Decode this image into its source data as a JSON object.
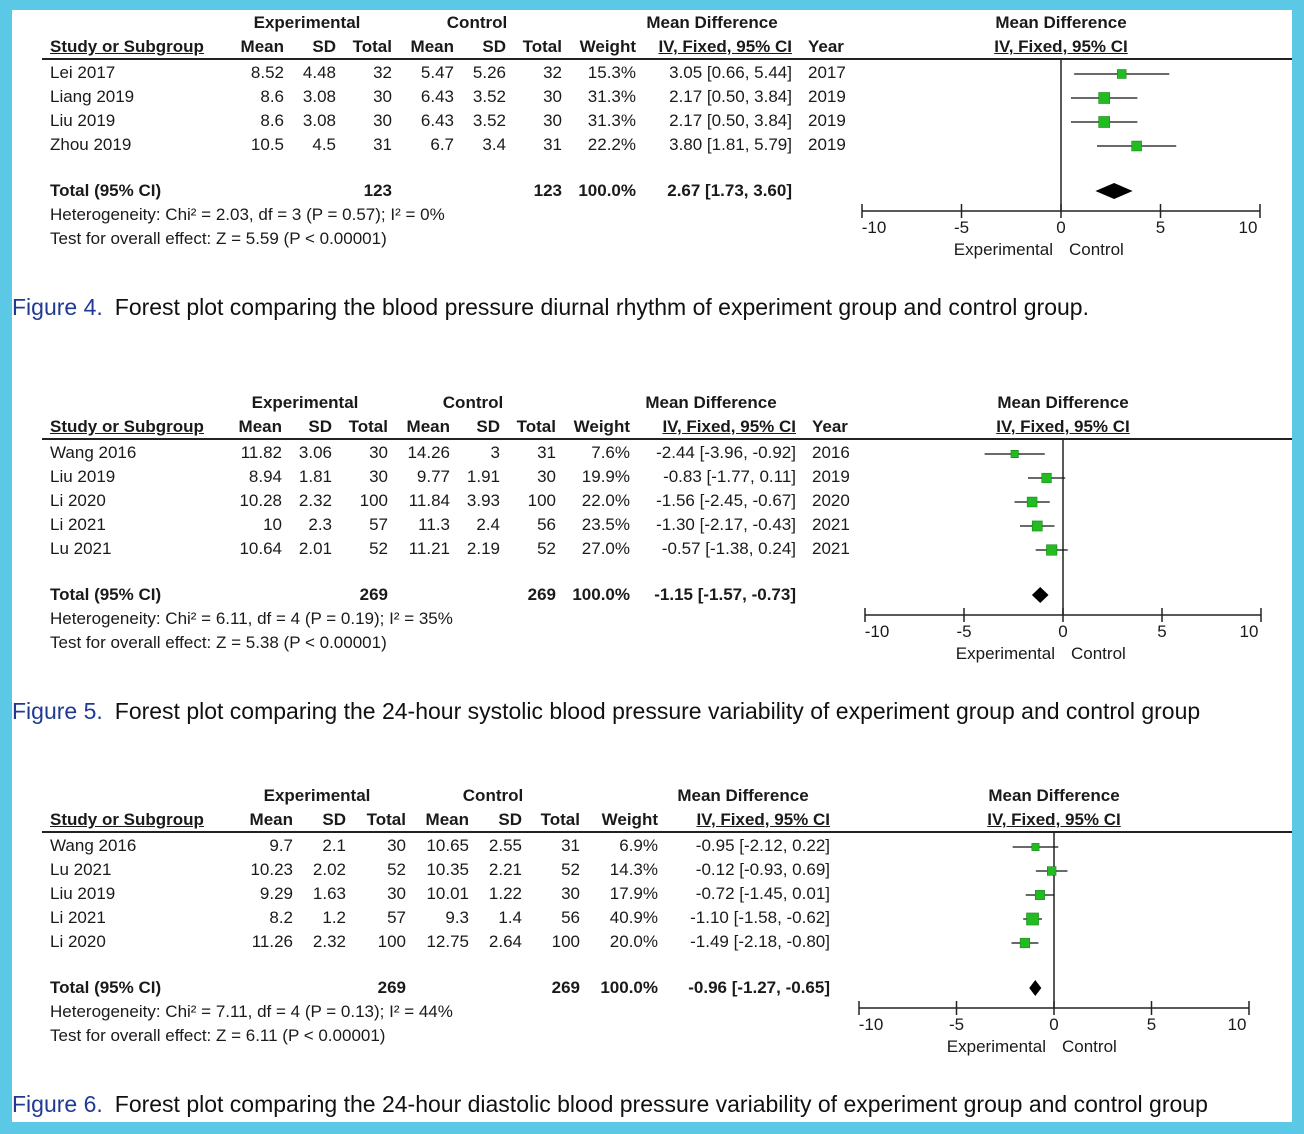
{
  "colors": {
    "frame": "#5bc8e6",
    "square": "#22bb22",
    "caption_label": "#1f3a93"
  },
  "headers": {
    "experimental": "Experimental",
    "control": "Control",
    "mean_difference": "Mean Difference",
    "study": "Study or Subgroup",
    "mean": "Mean",
    "sd": "SD",
    "total": "Total",
    "weight": "Weight",
    "ci_method": "IV, Fixed, 95% CI",
    "year": "Year",
    "favours_left": "Experimental",
    "favours_right": "Control"
  },
  "chart_data": [
    {
      "type": "forest",
      "figure_label": "Figure 4.",
      "caption": "Forest plot comparing the blood pressure diurnal rhythm of experiment group and control group.",
      "xlim": [
        -10,
        10
      ],
      "ticks": [
        "-10",
        "-5",
        "0",
        "5",
        "10"
      ],
      "has_year": true,
      "studies": [
        {
          "name": "Lei 2017",
          "e_mean": "8.52",
          "e_sd": "4.48",
          "e_total": "32",
          "c_mean": "5.47",
          "c_sd": "5.26",
          "c_total": "32",
          "weight": "15.3%",
          "ci": "3.05 [0.66, 5.44]",
          "year": "2017",
          "md": 3.05,
          "lo": 0.66,
          "hi": 5.44
        },
        {
          "name": "Liang 2019",
          "e_mean": "8.6",
          "e_sd": "3.08",
          "e_total": "30",
          "c_mean": "6.43",
          "c_sd": "3.52",
          "c_total": "30",
          "weight": "31.3%",
          "ci": "2.17 [0.50, 3.84]",
          "year": "2019",
          "md": 2.17,
          "lo": 0.5,
          "hi": 3.84
        },
        {
          "name": "Liu 2019",
          "e_mean": "8.6",
          "e_sd": "3.08",
          "e_total": "30",
          "c_mean": "6.43",
          "c_sd": "3.52",
          "c_total": "30",
          "weight": "31.3%",
          "ci": "2.17 [0.50, 3.84]",
          "year": "2019",
          "md": 2.17,
          "lo": 0.5,
          "hi": 3.84
        },
        {
          "name": "Zhou 2019",
          "e_mean": "10.5",
          "e_sd": "4.5",
          "e_total": "31",
          "c_mean": "6.7",
          "c_sd": "3.4",
          "c_total": "31",
          "weight": "22.2%",
          "ci": "3.80 [1.81, 5.79]",
          "year": "2019",
          "md": 3.8,
          "lo": 1.81,
          "hi": 5.79
        }
      ],
      "total": {
        "label": "Total (95% CI)",
        "e_total": "123",
        "c_total": "123",
        "weight": "100.0%",
        "ci": "2.67 [1.73, 3.60]",
        "md": 2.67,
        "lo": 1.73,
        "hi": 3.6
      },
      "heterogeneity": "Heterogeneity: Chi² = 2.03, df = 3 (P = 0.57); I² = 0%",
      "overall": "Test for overall effect: Z = 5.59 (P < 0.00001)"
    },
    {
      "type": "forest",
      "figure_label": "Figure 5.",
      "caption": "Forest plot comparing the 24-hour systolic blood pressure variability of experiment group and control group",
      "xlim": [
        -10,
        10
      ],
      "ticks": [
        "-10",
        "-5",
        "0",
        "5",
        "10"
      ],
      "has_year": true,
      "studies": [
        {
          "name": "Wang 2016",
          "e_mean": "11.82",
          "e_sd": "3.06",
          "e_total": "30",
          "c_mean": "14.26",
          "c_sd": "3",
          "c_total": "31",
          "weight": "7.6%",
          "ci": "-2.44 [-3.96, -0.92]",
          "year": "2016",
          "md": -2.44,
          "lo": -3.96,
          "hi": -0.92
        },
        {
          "name": "Liu 2019",
          "e_mean": "8.94",
          "e_sd": "1.81",
          "e_total": "30",
          "c_mean": "9.77",
          "c_sd": "1.91",
          "c_total": "30",
          "weight": "19.9%",
          "ci": "-0.83 [-1.77, 0.11]",
          "year": "2019",
          "md": -0.83,
          "lo": -1.77,
          "hi": 0.11
        },
        {
          "name": "Li 2020",
          "e_mean": "10.28",
          "e_sd": "2.32",
          "e_total": "100",
          "c_mean": "11.84",
          "c_sd": "3.93",
          "c_total": "100",
          "weight": "22.0%",
          "ci": "-1.56 [-2.45, -0.67]",
          "year": "2020",
          "md": -1.56,
          "lo": -2.45,
          "hi": -0.67
        },
        {
          "name": "Li 2021",
          "e_mean": "10",
          "e_sd": "2.3",
          "e_total": "57",
          "c_mean": "11.3",
          "c_sd": "2.4",
          "c_total": "56",
          "weight": "23.5%",
          "ci": "-1.30 [-2.17, -0.43]",
          "year": "2021",
          "md": -1.3,
          "lo": -2.17,
          "hi": -0.43
        },
        {
          "name": "Lu 2021",
          "e_mean": "10.64",
          "e_sd": "2.01",
          "e_total": "52",
          "c_mean": "11.21",
          "c_sd": "2.19",
          "c_total": "52",
          "weight": "27.0%",
          "ci": "-0.57 [-1.38, 0.24]",
          "year": "2021",
          "md": -0.57,
          "lo": -1.38,
          "hi": 0.24
        }
      ],
      "total": {
        "label": "Total (95% CI)",
        "e_total": "269",
        "c_total": "269",
        "weight": "100.0%",
        "ci": "-1.15 [-1.57, -0.73]",
        "md": -1.15,
        "lo": -1.57,
        "hi": -0.73
      },
      "heterogeneity": "Heterogeneity: Chi² = 6.11, df = 4 (P = 0.19); I² = 35%",
      "overall": "Test for overall effect: Z = 5.38 (P < 0.00001)"
    },
    {
      "type": "forest",
      "figure_label": "Figure 6.",
      "caption": "Forest plot comparing the 24-hour diastolic blood pressure variability of experiment group and control group",
      "xlim": [
        -10,
        10
      ],
      "ticks": [
        "-10",
        "-5",
        "0",
        "5",
        "10"
      ],
      "has_year": false,
      "studies": [
        {
          "name": "Wang 2016",
          "e_mean": "9.7",
          "e_sd": "2.1",
          "e_total": "30",
          "c_mean": "10.65",
          "c_sd": "2.55",
          "c_total": "31",
          "weight": "6.9%",
          "ci": "-0.95 [-2.12, 0.22]",
          "md": -0.95,
          "lo": -2.12,
          "hi": 0.22
        },
        {
          "name": "Lu 2021",
          "e_mean": "10.23",
          "e_sd": "2.02",
          "e_total": "52",
          "c_mean": "10.35",
          "c_sd": "2.21",
          "c_total": "52",
          "weight": "14.3%",
          "ci": "-0.12 [-0.93, 0.69]",
          "md": -0.12,
          "lo": -0.93,
          "hi": 0.69
        },
        {
          "name": "Liu 2019",
          "e_mean": "9.29",
          "e_sd": "1.63",
          "e_total": "30",
          "c_mean": "10.01",
          "c_sd": "1.22",
          "c_total": "30",
          "weight": "17.9%",
          "ci": "-0.72 [-1.45, 0.01]",
          "md": -0.72,
          "lo": -1.45,
          "hi": 0.01
        },
        {
          "name": "Li 2021",
          "e_mean": "8.2",
          "e_sd": "1.2",
          "e_total": "57",
          "c_mean": "9.3",
          "c_sd": "1.4",
          "c_total": "56",
          "weight": "40.9%",
          "ci": "-1.10 [-1.58, -0.62]",
          "md": -1.1,
          "lo": -1.58,
          "hi": -0.62
        },
        {
          "name": "Li 2020",
          "e_mean": "11.26",
          "e_sd": "2.32",
          "e_total": "100",
          "c_mean": "12.75",
          "c_sd": "2.64",
          "c_total": "100",
          "weight": "20.0%",
          "ci": "-1.49 [-2.18, -0.80]",
          "md": -1.49,
          "lo": -2.18,
          "hi": -0.8
        }
      ],
      "total": {
        "label": "Total (95% CI)",
        "e_total": "269",
        "c_total": "269",
        "weight": "100.0%",
        "ci": "-0.96 [-1.27, -0.65]",
        "md": -0.96,
        "lo": -1.27,
        "hi": -0.65
      },
      "heterogeneity": "Heterogeneity: Chi² = 7.11, df = 4 (P = 0.13); I² = 44%",
      "overall": "Test for overall effect: Z = 6.11 (P < 0.00001)"
    }
  ]
}
